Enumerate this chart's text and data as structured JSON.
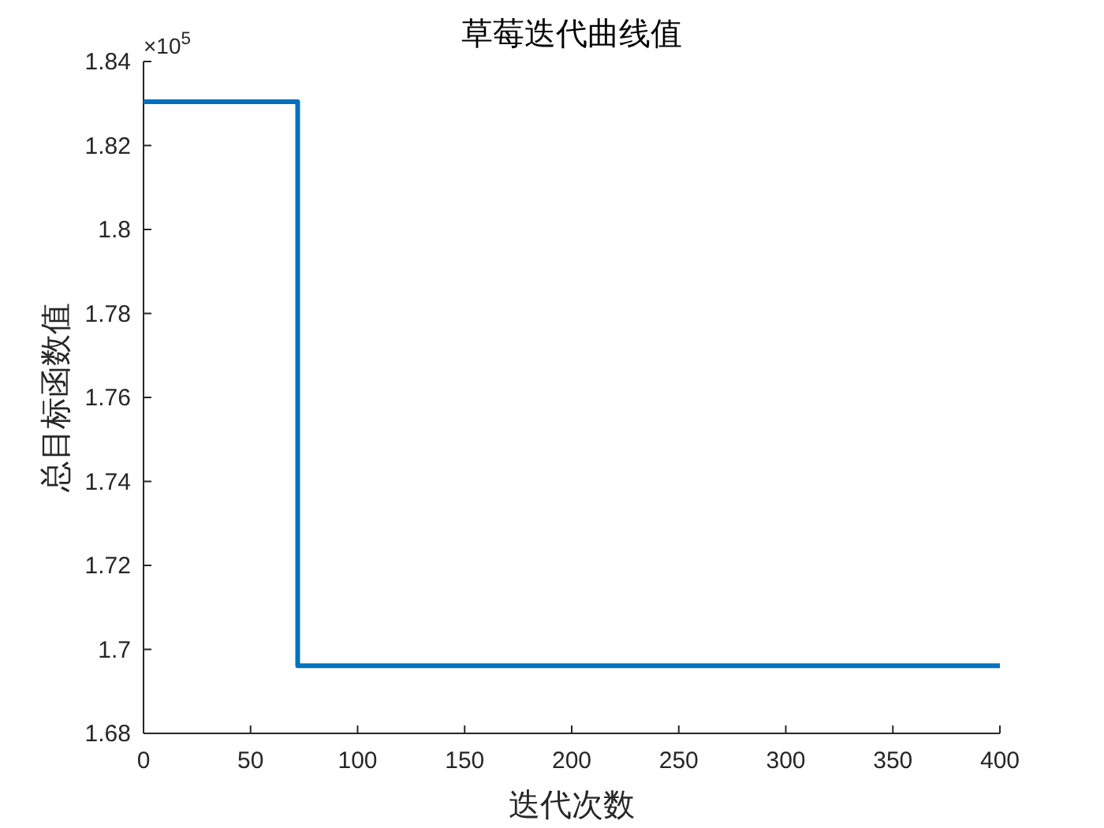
{
  "chart_data": {
    "type": "line",
    "title": "草莓迭代曲线值",
    "xlabel": "迭代次数",
    "ylabel": "总目标函数值",
    "annotations": [
      "×10$^{5}$"
    ],
    "x": [
      0,
      72,
      72,
      400
    ],
    "series": [
      {
        "color": "#0072bd",
        "values": [
          1.8304,
          1.8304,
          1.6961,
          1.6961
        ]
      }
    ],
    "xlim": [
      0,
      400
    ],
    "xticks": [
      0,
      50,
      100,
      150,
      200,
      250,
      300,
      350,
      400
    ],
    "ylim": [
      1.68,
      1.84
    ],
    "yticks": [
      1.68,
      1.7,
      1.72,
      1.74,
      1.76,
      1.78,
      1.8,
      1.82,
      1.84
    ],
    "grid": false,
    "marker": "none",
    "line_style": "solid"
  }
}
